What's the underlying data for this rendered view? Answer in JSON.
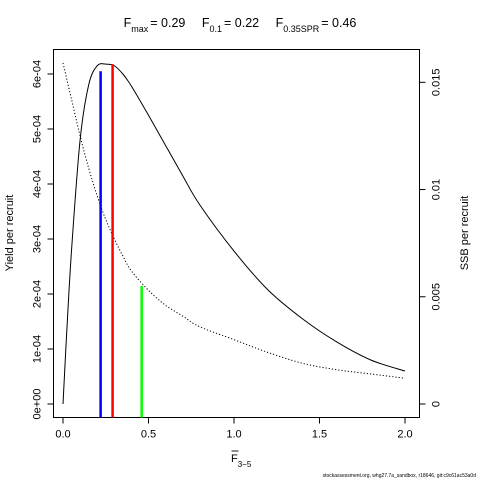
{
  "title": {
    "fmax_name": "F",
    "fmax_sub": "max",
    "fmax_value": "= 0.29",
    "f01_name": "F",
    "f01_sub": "0.1",
    "f01_value": "= 0.22",
    "fspr_name": "F",
    "fspr_sub": "0.35SPR",
    "fspr_value": "= 0.46"
  },
  "footer": "stockassessment.org, whg27.7a_sandbox, r18646, git:c9c61ac53a0d",
  "chart_data": {
    "type": "line",
    "xlabel": {
      "base": "F",
      "sub": "3−5"
    },
    "ylabel_left": "Yield per recruit",
    "ylabel_right": "SSB per recruit",
    "xlim": [
      0,
      2
    ],
    "ylim_left": [
      0,
      0.00065
    ],
    "ylim_right": [
      0,
      0.0165
    ],
    "x_ticks": [
      0,
      0.5,
      1,
      1.5,
      2
    ],
    "x_tick_labels": [
      "0.0",
      "0.5",
      "1.0",
      "1.5",
      "2.0"
    ],
    "y_left_ticks": [
      0,
      0.0001,
      0.0002,
      0.0003,
      0.0004,
      0.0005,
      0.0006
    ],
    "y_left_tick_labels": [
      "0e+00",
      "1e-04",
      "2e-04",
      "3e-04",
      "4e-04",
      "5e-04",
      "6e-04"
    ],
    "y_right_ticks": [
      0,
      0.005,
      0.01,
      0.015
    ],
    "y_right_tick_labels": [
      "0",
      "0.005",
      "0.01",
      "0.015"
    ],
    "grid": false,
    "series": [
      {
        "axis": "left",
        "style": "solid",
        "color": "#000000",
        "x": [
          0,
          0.02,
          0.05,
          0.1,
          0.15,
          0.2,
          0.25,
          0.3,
          0.35,
          0.4,
          0.5,
          0.6,
          0.7,
          0.8,
          1.0,
          1.2,
          1.4,
          1.6,
          1.8,
          2.0
        ],
        "y": [
          0,
          0.00012,
          0.00028,
          0.00048,
          0.00058,
          0.000615,
          0.000618,
          0.000615,
          0.0006,
          0.000578,
          0.000525,
          0.00047,
          0.000415,
          0.000362,
          0.000278,
          0.000207,
          0.000155,
          0.000113,
          8e-05,
          6e-05
        ]
      },
      {
        "axis": "right",
        "style": "dotted",
        "color": "#000000",
        "x": [
          0,
          0.05,
          0.1,
          0.15,
          0.2,
          0.25,
          0.3,
          0.35,
          0.4,
          0.5,
          0.6,
          0.7,
          0.8,
          1.0,
          1.2,
          1.4,
          1.6,
          1.8,
          2.0
        ],
        "y": [
          0.0159,
          0.0142,
          0.0125,
          0.011,
          0.0097,
          0.0086,
          0.0077,
          0.0069,
          0.0062,
          0.0053,
          0.0046,
          0.0041,
          0.0036,
          0.003,
          0.0024,
          0.0019,
          0.0016,
          0.0014,
          0.0012
        ]
      }
    ],
    "reference_lines": [
      {
        "label": "Fmax",
        "x": 0.29,
        "y": 0.000618,
        "axis": "left",
        "color": "#ff0000"
      },
      {
        "label": "F0.1",
        "x": 0.22,
        "y": 0.000605,
        "axis": "left",
        "color": "#0000ff"
      },
      {
        "label": "F0.35SPR",
        "x": 0.46,
        "y": 0.0055,
        "axis": "right",
        "color": "#00ff00"
      }
    ]
  }
}
